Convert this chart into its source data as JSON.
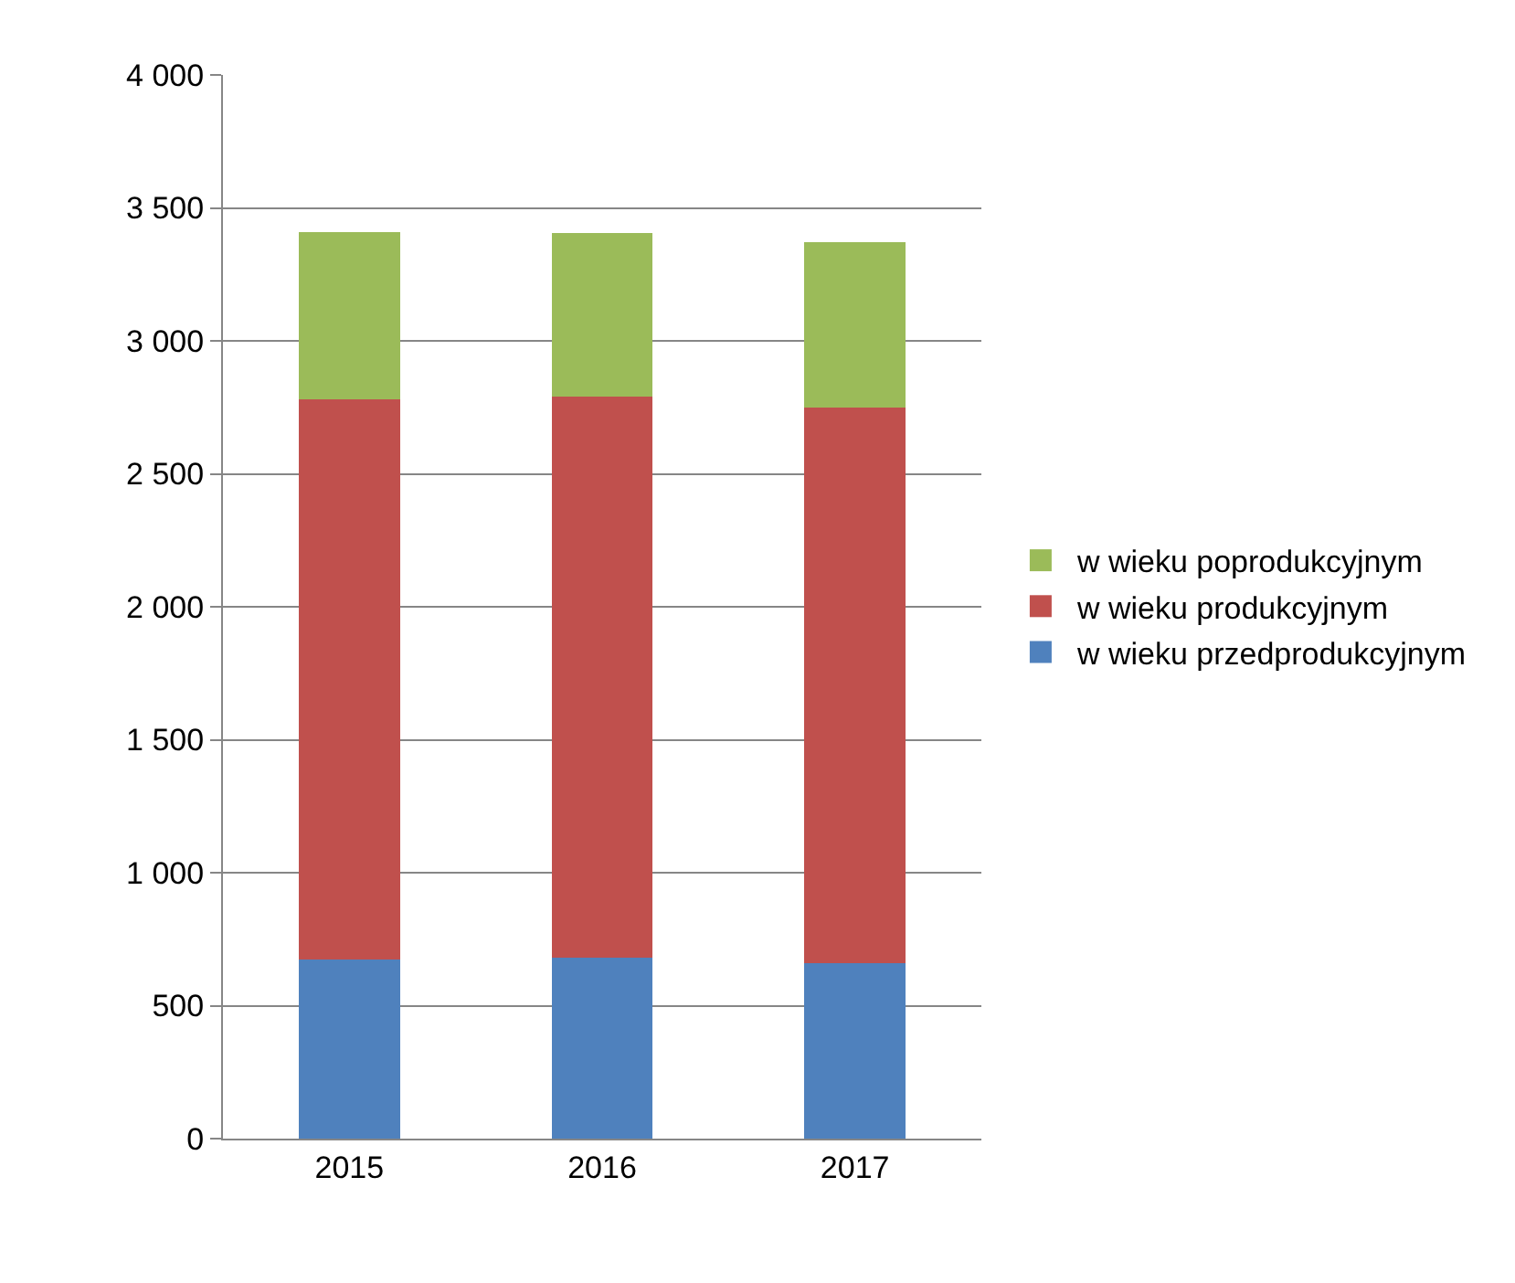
{
  "chart_data": {
    "type": "bar",
    "stacked": true,
    "categories": [
      "2015",
      "2016",
      "2017"
    ],
    "series": [
      {
        "name": "w wieku przedprodukcyjnym",
        "color": "#4f81bd",
        "values": [
          675,
          680,
          660
        ]
      },
      {
        "name": "w wieku produkcyjnym",
        "color": "#c0504d",
        "values": [
          2105,
          2110,
          2090
        ]
      },
      {
        "name": "w wieku poprodukcyjnym",
        "color": "#9bbb59",
        "values": [
          630,
          615,
          620
        ]
      }
    ],
    "ylim": [
      0,
      4000
    ],
    "yticks": [
      0,
      500,
      {
        "value": 1000,
        "label": "1 000"
      },
      {
        "value": 1500,
        "label": "1 500"
      },
      {
        "value": 2000,
        "label": "2 000"
      },
      {
        "value": 2500,
        "label": "2 500"
      },
      {
        "value": 3000,
        "label": "3 000"
      },
      {
        "value": 3500,
        "label": "3 500"
      },
      {
        "value": 4000,
        "label": "4 000"
      }
    ],
    "grid": "y",
    "legend": "right"
  }
}
